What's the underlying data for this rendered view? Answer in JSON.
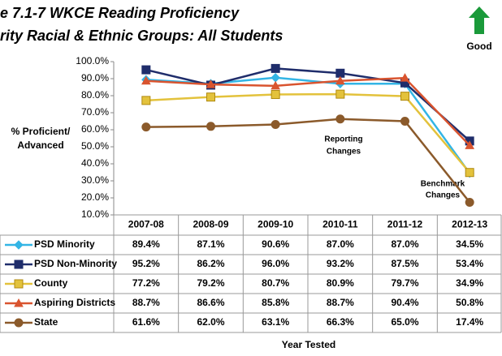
{
  "chart_data": {
    "type": "line",
    "title_lines": [
      "e 7.1-7 WKCE Reading Proficiency",
      "rity Racial & Ethnic Groups: All Students"
    ],
    "good_label": "Good",
    "y_label": [
      "% Proficient/",
      "Advanced"
    ],
    "x_label": "Year Tested",
    "annotations": [
      [
        "Reporting",
        "Changes"
      ],
      [
        "Benchmark",
        "Changes"
      ]
    ],
    "categories": [
      "2007-08",
      "2008-09",
      "2009-10",
      "2010-11",
      "2011-12",
      "2012-13"
    ],
    "ylim": [
      10,
      100
    ],
    "yticks": [
      {
        "value": 10,
        "label": "10.0%"
      },
      {
        "value": 20,
        "label": "20.0%"
      },
      {
        "value": 30,
        "label": "30.0%"
      },
      {
        "value": 40,
        "label": "40.0%"
      },
      {
        "value": 50,
        "label": "50.0%"
      },
      {
        "value": 60,
        "label": "60.0%"
      },
      {
        "value": 70,
        "label": "70.0%"
      },
      {
        "value": 80,
        "label": "80.0%"
      },
      {
        "value": 90,
        "label": "90.0%"
      },
      {
        "value": 100,
        "label": "100.0%"
      }
    ],
    "grid": false,
    "series": [
      {
        "name": "PSD Minority",
        "color": "#33b5e5",
        "marker": "diamond",
        "values": [
          89.4,
          87.1,
          90.6,
          87.0,
          87.0,
          34.5
        ],
        "value_labels": [
          "89.4%",
          "87.1%",
          "90.6%",
          "87.0%",
          "87.0%",
          "34.5%"
        ]
      },
      {
        "name": "PSD Non-Minority",
        "color": "#1f2d6b",
        "marker": "square",
        "values": [
          95.2,
          86.2,
          96.0,
          93.2,
          87.5,
          53.4
        ],
        "value_labels": [
          "95.2%",
          "86.2%",
          "96.0%",
          "93.2%",
          "87.5%",
          "53.4%"
        ]
      },
      {
        "name": "County",
        "color": "#e3c23c",
        "marker": "square",
        "values": [
          77.2,
          79.2,
          80.7,
          80.9,
          79.7,
          34.9
        ],
        "value_labels": [
          "77.2%",
          "79.2%",
          "80.7%",
          "80.9%",
          "79.7%",
          "34.9%"
        ]
      },
      {
        "name": "Aspiring Districts",
        "color": "#d9542f",
        "marker": "triangle",
        "values": [
          88.7,
          86.6,
          85.8,
          88.7,
          90.4,
          50.8
        ],
        "value_labels": [
          "88.7%",
          "86.6%",
          "85.8%",
          "88.7%",
          "90.4%",
          "50.8%"
        ]
      },
      {
        "name": "State",
        "color": "#8b5a2b",
        "marker": "circle",
        "values": [
          61.6,
          62.0,
          63.1,
          66.3,
          65.0,
          17.4
        ],
        "value_labels": [
          "61.6%",
          "62.0%",
          "63.1%",
          "66.3%",
          "65.0%",
          "17.4%"
        ]
      }
    ]
  }
}
